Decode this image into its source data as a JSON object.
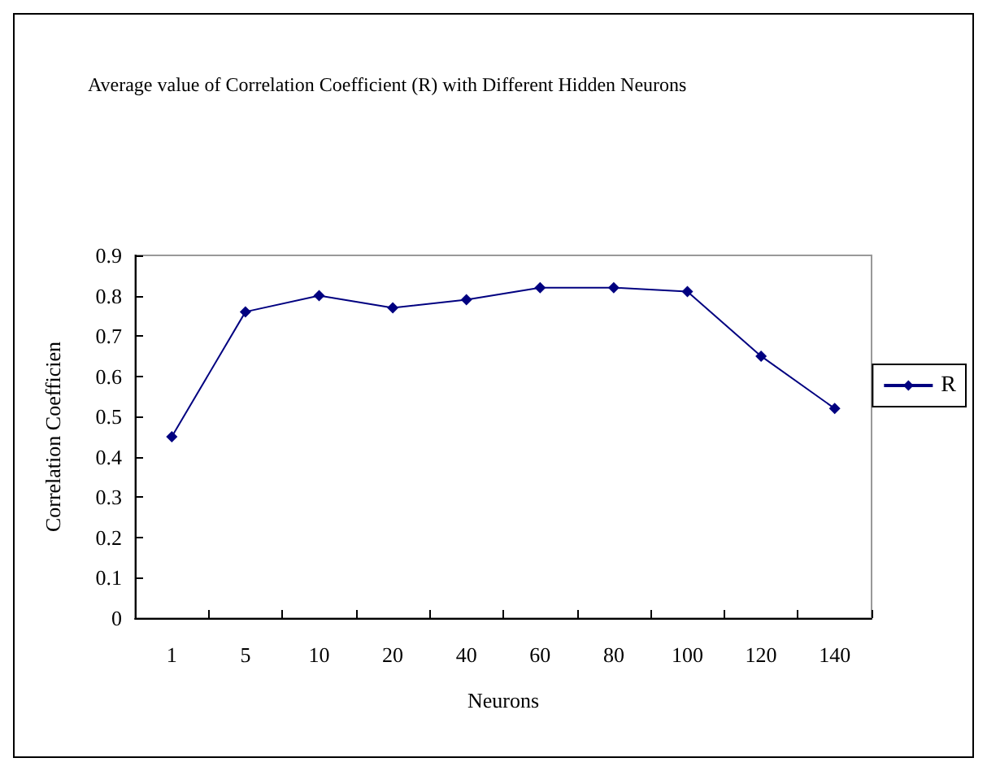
{
  "chart_data": {
    "type": "line",
    "title": "Average value of Correlation Coefficient (R) with Different Hidden Neurons",
    "xlabel": "Neurons",
    "ylabel": "Correlation Coefficien",
    "categories": [
      "1",
      "5",
      "10",
      "20",
      "40",
      "60",
      "80",
      "100",
      "120",
      "140"
    ],
    "series": [
      {
        "name": "R",
        "color": "#000080",
        "values": [
          0.45,
          0.76,
          0.8,
          0.77,
          0.79,
          0.82,
          0.82,
          0.81,
          0.65,
          0.52
        ]
      }
    ],
    "ylim": [
      0,
      0.9
    ],
    "yticks": [
      0,
      0.1,
      0.2,
      0.3,
      0.4,
      0.5,
      0.6,
      0.7,
      0.8,
      0.9
    ],
    "grid": false,
    "legend": "right",
    "marker": "diamond",
    "line_style": "solid"
  }
}
